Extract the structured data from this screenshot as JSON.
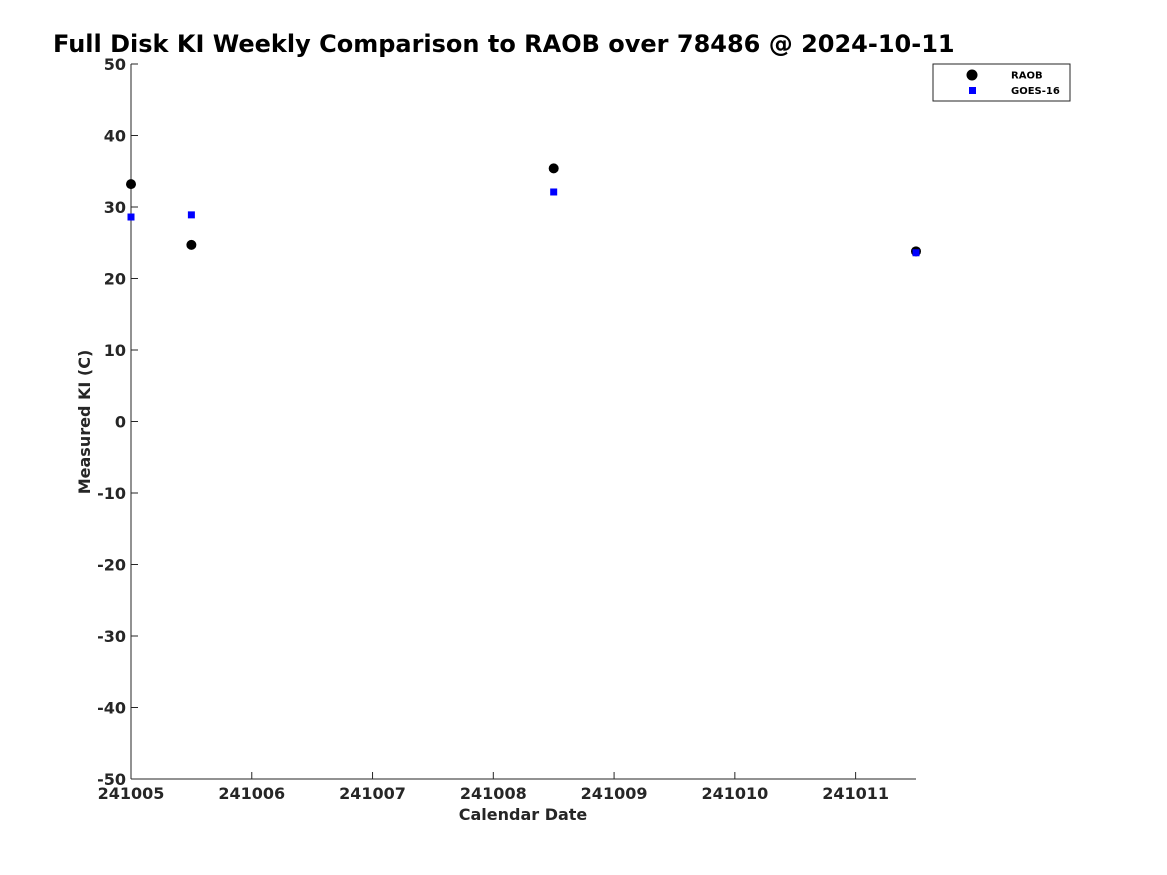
{
  "chart_data": {
    "type": "scatter",
    "title": "Full Disk KI Weekly Comparison to RAOB over 78486 @ 2024-10-11",
    "xlabel": "Calendar Date",
    "ylabel": "Measured KI (C)",
    "xlim": [
      "2024-10-05T00:00",
      "2024-10-11T12:00"
    ],
    "ylim": [
      -50,
      50
    ],
    "x_ticks": [
      {
        "at": "2024-10-05T00:00",
        "label": "241005"
      },
      {
        "at": "2024-10-06T00:00",
        "label": "241006"
      },
      {
        "at": "2024-10-07T00:00",
        "label": "241007"
      },
      {
        "at": "2024-10-08T00:00",
        "label": "241008"
      },
      {
        "at": "2024-10-09T00:00",
        "label": "241009"
      },
      {
        "at": "2024-10-10T00:00",
        "label": "241010"
      },
      {
        "at": "2024-10-11T00:00",
        "label": "241011"
      }
    ],
    "y_ticks": [
      50,
      40,
      30,
      20,
      10,
      0,
      -10,
      -20,
      -30,
      -40,
      -50
    ],
    "grid": false,
    "legend_position": "top-right",
    "series": [
      {
        "name": "RAOB",
        "marker": "circle",
        "color": "#000000",
        "points": [
          {
            "x": "2024-10-05T00:00",
            "y": 33.2
          },
          {
            "x": "2024-10-05T12:00",
            "y": 24.7
          },
          {
            "x": "2024-10-08T12:00",
            "y": 35.4
          },
          {
            "x": "2024-10-11T12:00",
            "y": 23.8
          }
        ]
      },
      {
        "name": "GOES-16",
        "marker": "square",
        "color": "#0000ff",
        "points": [
          {
            "x": "2024-10-05T00:00",
            "y": 28.6
          },
          {
            "x": "2024-10-05T12:00",
            "y": 28.9
          },
          {
            "x": "2024-10-08T12:00",
            "y": 32.1
          },
          {
            "x": "2024-10-11T12:00",
            "y": 23.6
          }
        ]
      }
    ]
  }
}
